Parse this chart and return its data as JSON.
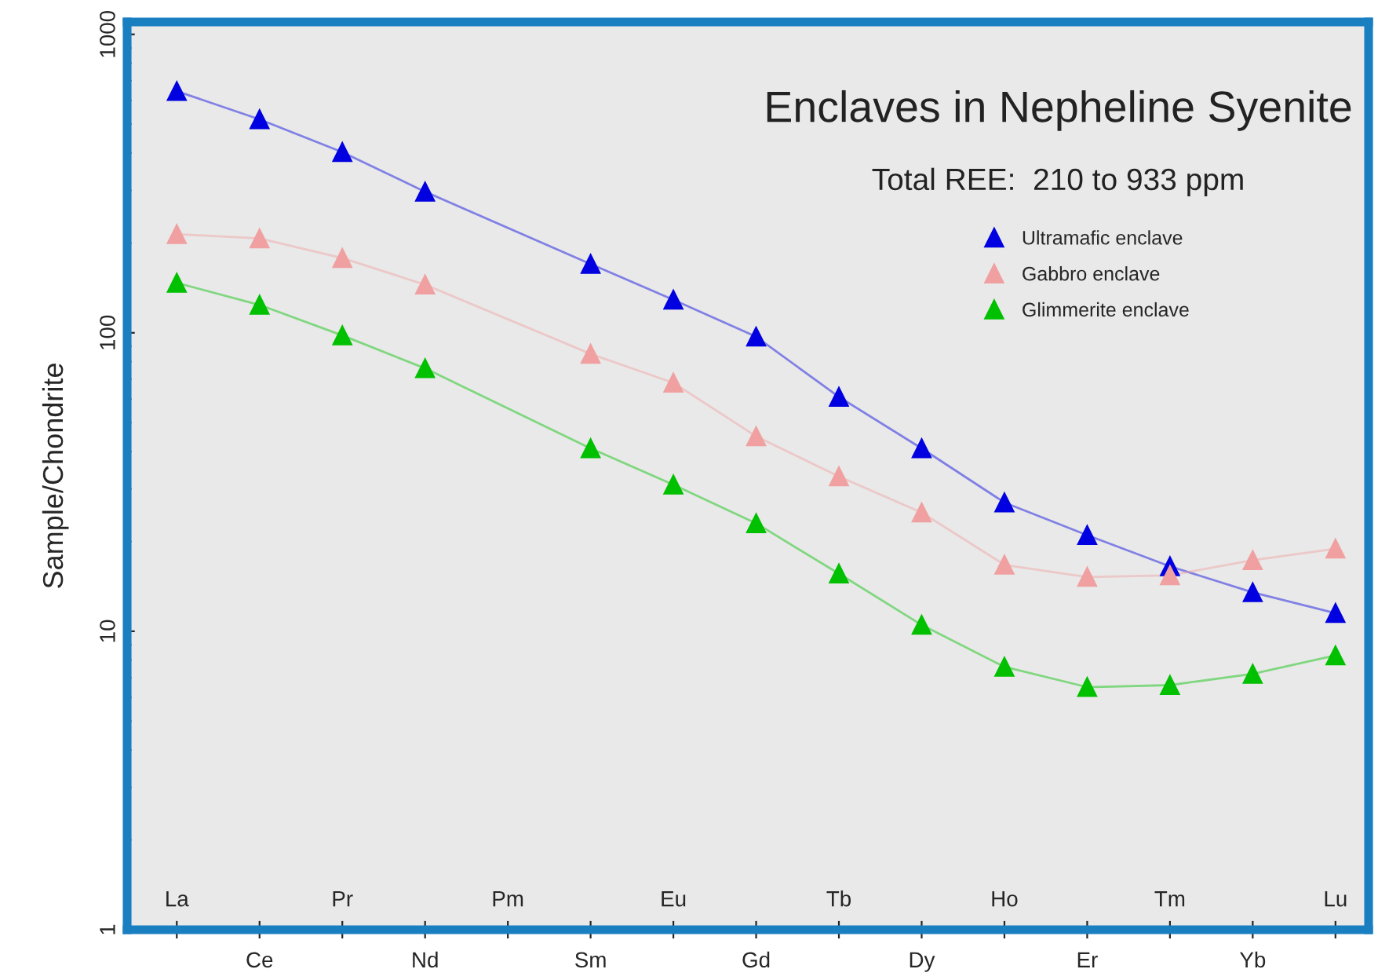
{
  "chart_data": {
    "type": "line",
    "title": "Enclaves in Nepheline Syenite",
    "subtitle": "Total REE:  210 to 933 ppm",
    "ylabel": "Sample/Chondrite",
    "categories": [
      "La",
      "Ce",
      "Pr",
      "Nd",
      "Pm",
      "Sm",
      "Eu",
      "Gd",
      "Tb",
      "Dy",
      "Ho",
      "Er",
      "Tm",
      "Yb",
      "Lu"
    ],
    "series": [
      {
        "name": "Ultramafic enclave",
        "color": "#0000e0",
        "marker": "triangle",
        "values": [
          645,
          519,
          403,
          297,
          null,
          170,
          129,
          97,
          61,
          41,
          27,
          21,
          16.5,
          13.5,
          11.5
        ]
      },
      {
        "name": "Gabbro enclave",
        "color": "#f0a0a0",
        "marker": "triangle",
        "values": [
          214,
          207,
          178,
          145,
          null,
          85,
          68,
          45,
          33,
          25,
          16.7,
          15.2,
          15.4,
          17.3,
          18.9
        ]
      },
      {
        "name": "Glimmerite enclave",
        "color": "#00c000",
        "marker": "triangle",
        "values": [
          147,
          124,
          98,
          76,
          null,
          41,
          31,
          23,
          15.6,
          10.5,
          7.6,
          6.5,
          6.6,
          7.2,
          8.3
        ]
      }
    ],
    "log": true,
    "ylim": [
      1,
      1100
    ],
    "yticks": [
      1,
      10,
      100,
      1000
    ],
    "grid": false,
    "legend": "top right",
    "line_style": "solid"
  }
}
